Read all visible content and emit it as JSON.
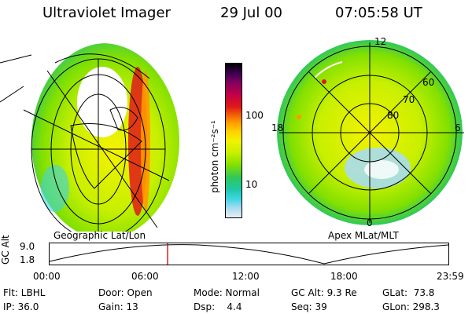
{
  "header": {
    "instrument": "Ultraviolet Imager",
    "date": "29 Jul 00",
    "time": "07:05:58 UT"
  },
  "colorbar": {
    "unit_label": "photon cm⁻²s⁻¹",
    "ticks": [
      "100",
      "10"
    ],
    "colors": [
      "#000000",
      "#3a0050",
      "#800060",
      "#c0004a",
      "#e01818",
      "#f05a0a",
      "#ff9800",
      "#ffd000",
      "#f4f200",
      "#c8f000",
      "#82e000",
      "#30c85a",
      "#20c8a8",
      "#40d4e4",
      "#a8dcf0",
      "#e8eef4"
    ]
  },
  "panels": {
    "left_label": "Geographic Lat/Lon",
    "right_label": "Apex MLat/MLT"
  },
  "polar": {
    "mlt_labels": {
      "top": "12",
      "left": "18",
      "right": "6",
      "bottom": "0"
    },
    "lat_labels": [
      "60",
      "70",
      "80"
    ]
  },
  "timeline": {
    "ylabel": "GC Alt",
    "yticks": [
      "9.0",
      "1.8"
    ],
    "xticks": [
      "00:00",
      "06:00",
      "12:00",
      "18:00",
      "23:59"
    ],
    "current_time_fraction": 0.296,
    "marker_color": "#c00000"
  },
  "status": {
    "flt": "Flt: LBHL",
    "ip": "IP: 36.0",
    "door": "Door: Open",
    "gain": "Gain: 13",
    "mode": "Mode: Normal",
    "dsp": "Dsp:    4.4",
    "gcalt": "GC Alt: 9.3 Re",
    "seq": "Seq: 39",
    "glat": "GLat:  73.8",
    "glon": "GLon: 298.3"
  }
}
